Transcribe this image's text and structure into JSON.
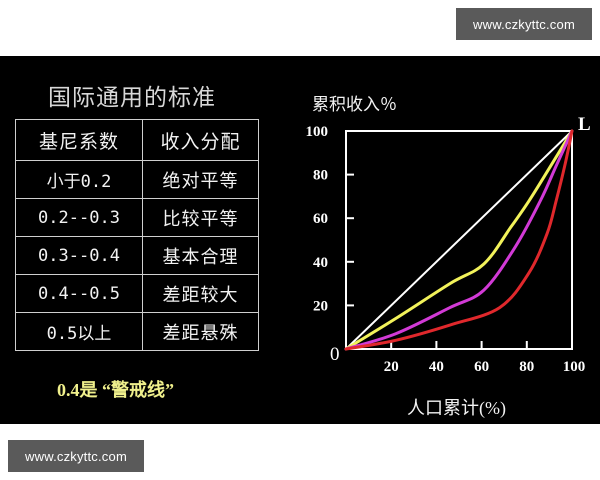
{
  "watermarks": {
    "top": "www.czkyttc.com",
    "bottom": "www.czkyttc.com"
  },
  "slide": {
    "title": "国际通用的标准",
    "table": {
      "headers": [
        "基尼系数",
        "收入分配"
      ],
      "rows": [
        [
          "小于0.2",
          "绝对平等"
        ],
        [
          "0.2--0.3",
          "比较平等"
        ],
        [
          "0.3--0.4",
          "基本合理"
        ],
        [
          "0.4--0.5",
          "差距较大"
        ],
        [
          "0.5以上",
          "差距悬殊"
        ]
      ]
    },
    "warning": "0.4是 “警戒线”"
  },
  "chart_data": {
    "type": "line",
    "title": "",
    "ylabel": "累积收入％",
    "xlabel": "人口累计(%)",
    "corner_label": "L",
    "origin_label": "0",
    "xlim": [
      0,
      100
    ],
    "ylim": [
      0,
      100
    ],
    "xticks": [
      20,
      40,
      60,
      80,
      100
    ],
    "yticks": [
      20,
      40,
      60,
      80,
      100
    ],
    "grid": false,
    "legend": "none",
    "series": [
      {
        "name": "equality-line",
        "color": "#ffffff",
        "x": [
          0,
          100
        ],
        "y": [
          0,
          100
        ]
      },
      {
        "name": "lorenz-curve-1",
        "color": "#f2f25a",
        "x": [
          0,
          22,
          46,
          61,
          73,
          81,
          90,
          100
        ],
        "y": [
          0,
          14,
          30,
          39,
          56,
          68,
          83,
          100
        ]
      },
      {
        "name": "lorenz-curve-2",
        "color": "#d23ad6",
        "x": [
          0,
          22,
          46,
          61,
          75,
          86,
          93,
          100
        ],
        "y": [
          0,
          7,
          19,
          27,
          47,
          68,
          84,
          100
        ]
      },
      {
        "name": "lorenz-curve-3",
        "color": "#e0282c",
        "x": [
          0,
          22,
          46,
          68,
          81,
          89,
          93,
          97,
          100
        ],
        "y": [
          0,
          4,
          11,
          19,
          35,
          53,
          68,
          85,
          100
        ]
      }
    ]
  }
}
